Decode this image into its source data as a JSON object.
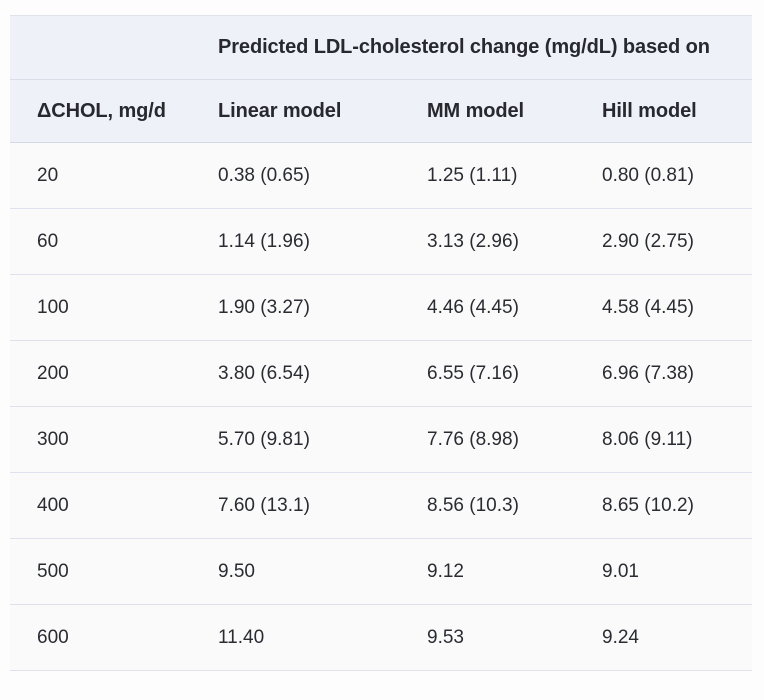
{
  "table": {
    "spanning_header": "Predicted LDL-cholesterol change (mg/dL) based on",
    "columns": [
      "ΔCHOL, mg/d",
      "Linear model",
      "MM model",
      "Hill model"
    ],
    "rows": [
      [
        "20",
        "0.38 (0.65)",
        "1.25 (1.11)",
        "0.80 (0.81)"
      ],
      [
        "60",
        "1.14 (1.96)",
        "3.13 (2.96)",
        "2.90 (2.75)"
      ],
      [
        "100",
        "1.90 (3.27)",
        "4.46 (4.45)",
        "4.58 (4.45)"
      ],
      [
        "200",
        "3.80 (6.54)",
        "6.55 (7.16)",
        "6.96 (7.38)"
      ],
      [
        "300",
        "5.70 (9.81)",
        "7.76 (8.98)",
        "8.06 (9.11)"
      ],
      [
        "400",
        "7.60 (13.1)",
        "8.56 (10.3)",
        "8.65 (10.2)"
      ],
      [
        "500",
        "9.50",
        "9.12",
        "9.01"
      ],
      [
        "600",
        "11.40",
        "9.53",
        "9.24"
      ]
    ],
    "colors": {
      "header_bg": "#eef1f7",
      "header_border": "#d4d8e5",
      "row_border": "#dfe2ec",
      "text": "#2a2c32",
      "page_bg": "#fdfdfd"
    }
  },
  "chart_data": {
    "type": "table",
    "title": "Predicted LDL-cholesterol change (mg/dL) based on",
    "columns": [
      "ΔCHOL, mg/d",
      "Linear model",
      "MM model",
      "Hill model"
    ],
    "x": [
      20,
      60,
      100,
      200,
      300,
      400,
      500,
      600
    ],
    "series": [
      {
        "name": "Linear model",
        "values": [
          0.38,
          1.14,
          1.9,
          3.8,
          5.7,
          7.6,
          9.5,
          11.4
        ],
        "values_in_parentheses": [
          0.65,
          1.96,
          3.27,
          6.54,
          9.81,
          13.1,
          null,
          null
        ]
      },
      {
        "name": "MM model",
        "values": [
          1.25,
          3.13,
          4.46,
          6.55,
          7.76,
          8.56,
          9.12,
          9.53
        ],
        "values_in_parentheses": [
          1.11,
          2.96,
          4.45,
          7.16,
          8.98,
          10.3,
          null,
          null
        ]
      },
      {
        "name": "Hill model",
        "values": [
          0.8,
          2.9,
          4.58,
          6.96,
          8.06,
          8.65,
          9.01,
          9.24
        ],
        "values_in_parentheses": [
          0.81,
          2.75,
          4.45,
          7.38,
          9.11,
          10.2,
          null,
          null
        ]
      }
    ]
  }
}
